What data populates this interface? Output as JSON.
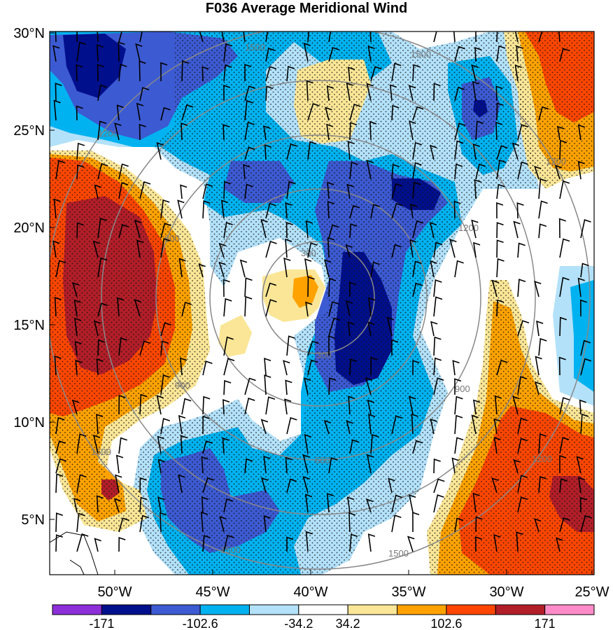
{
  "title": "F036 Average Meridional Wind",
  "axes": {
    "lat_labels": [
      "30°N",
      "25°N",
      "20°N",
      "15°N",
      "10°N",
      "5°N"
    ],
    "lon_labels": [
      "50°W",
      "45°W",
      "40°W",
      "35°W",
      "30°W",
      "25°W"
    ]
  },
  "range_ring_labels": [
    "300",
    "600",
    "900",
    "1200",
    "1500"
  ],
  "colorbar": {
    "colors": [
      "#8c2fd9",
      "#000f8c",
      "#3c5ad2",
      "#00b2f0",
      "#b3e1fa",
      "#ffffff",
      "#fae696",
      "#ffa200",
      "#ff4600",
      "#b21e28",
      "#ff8cc8"
    ],
    "tick_labels": [
      "-171",
      "-102.6",
      "-34.2",
      "34.2",
      "102.6",
      "171"
    ]
  },
  "legend_colors": {
    "strong_negative": "#000f8c",
    "negative": "#3c5ad2",
    "moderate_negative": "#00b2f0",
    "weak_negative": "#b3e1fa",
    "weak_positive": "#fae696",
    "moderate_positive": "#ffa200",
    "positive": "#ff4600",
    "strong_positive": "#b21e28"
  }
}
